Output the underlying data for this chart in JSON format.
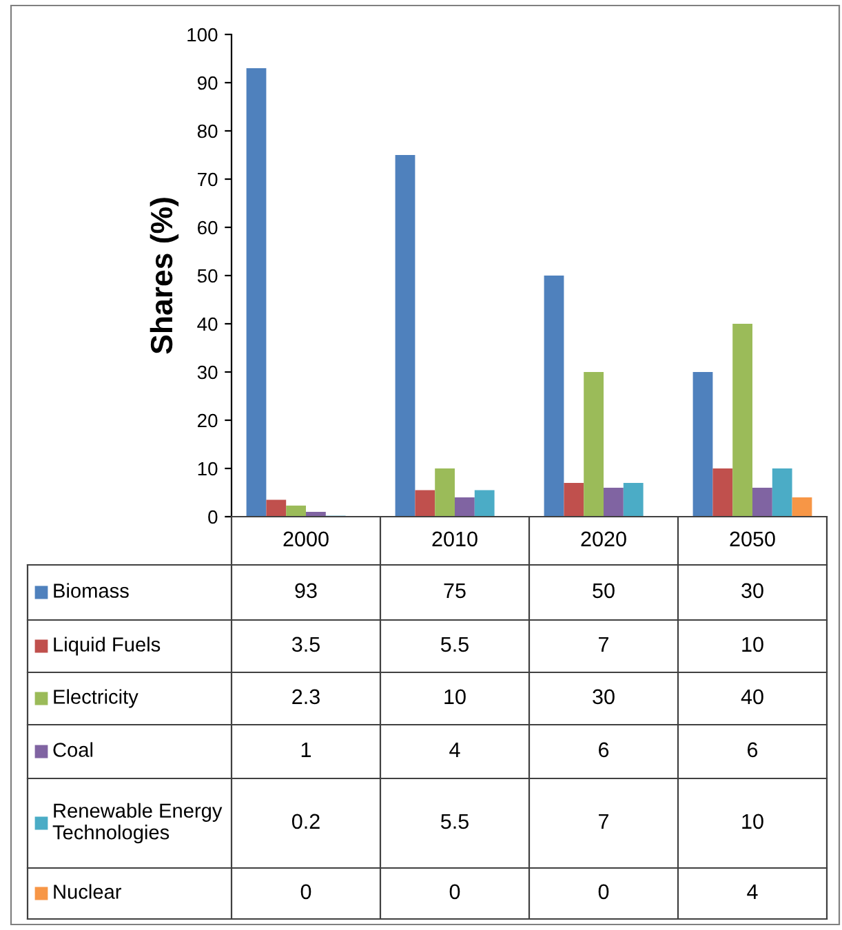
{
  "chart_data": {
    "type": "bar",
    "ylabel": "Shares (%)",
    "categories": [
      "2000",
      "2010",
      "2020",
      "2050"
    ],
    "series": [
      {
        "name": "Biomass",
        "color": "#4f81bd",
        "values": [
          93,
          75,
          50,
          30
        ]
      },
      {
        "name": "Liquid Fuels",
        "color": "#c0504d",
        "values": [
          3.5,
          5.5,
          7,
          10
        ]
      },
      {
        "name": "Electricity",
        "color": "#9bbb59",
        "values": [
          2.3,
          10,
          30,
          40
        ]
      },
      {
        "name": "Coal",
        "color": "#8064a2",
        "values": [
          1,
          4,
          6,
          6
        ]
      },
      {
        "name": "Renewable Energy Technologies",
        "color": "#4bacc6",
        "values": [
          0.2,
          5.5,
          7,
          10
        ]
      },
      {
        "name": "Nuclear",
        "color": "#f79646",
        "values": [
          0,
          0,
          0,
          4
        ]
      }
    ],
    "ylim": [
      0,
      100
    ],
    "yticks": [
      0,
      10,
      20,
      30,
      40,
      50,
      60,
      70,
      80,
      90,
      100
    ],
    "grid": false,
    "legend": "bottom",
    "data_labels": true
  }
}
